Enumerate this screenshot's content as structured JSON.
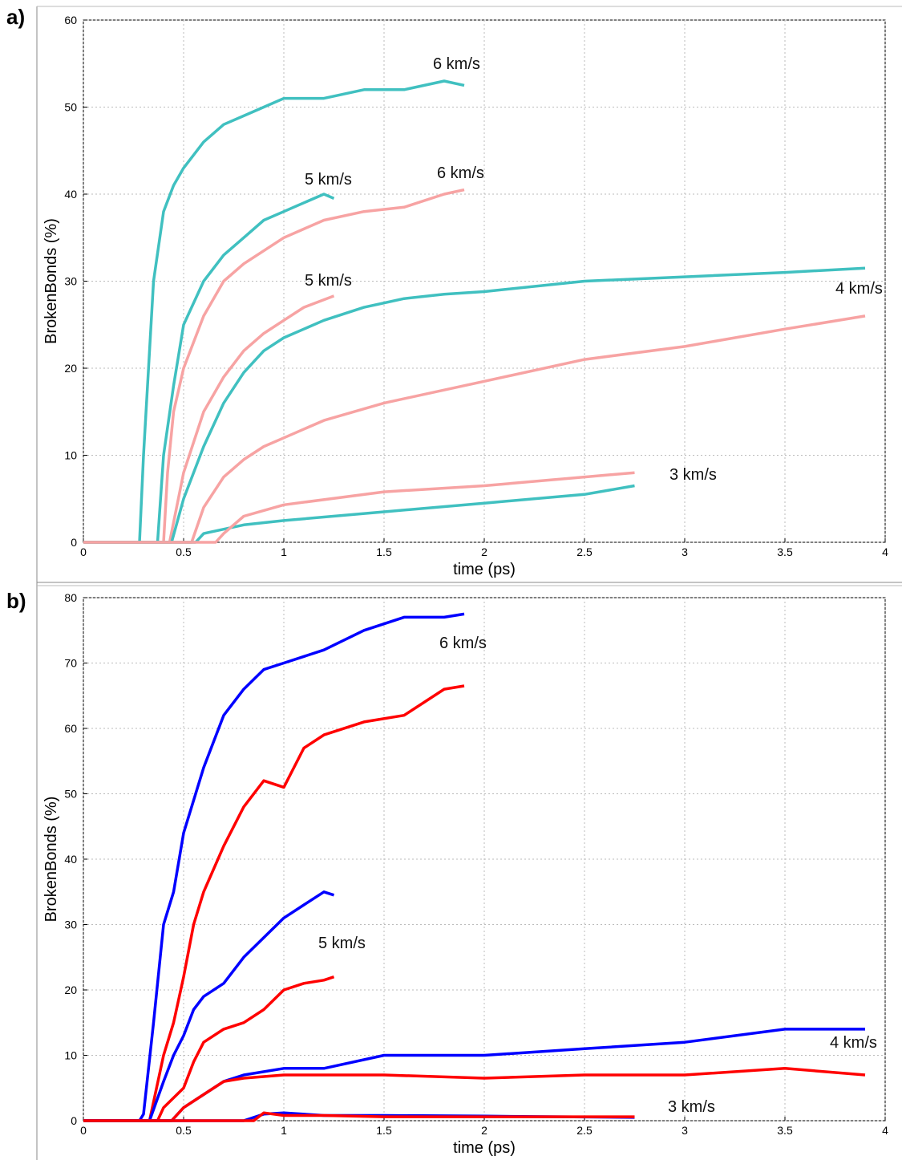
{
  "chart_data": [
    {
      "type": "line",
      "label": "a)",
      "xlabel": "time (ps)",
      "ylabel": "BrokenBonds (%)",
      "grid": true,
      "xlim": [
        0,
        4
      ],
      "ylim": [
        0,
        60
      ],
      "xticks": [
        0,
        0.5,
        1,
        1.5,
        2,
        2.5,
        3,
        3.5,
        4
      ],
      "yticks": [
        0,
        10,
        20,
        30,
        40,
        50,
        60
      ],
      "series": [
        {
          "color": "#40c0c0",
          "x": [
            0,
            0.28,
            0.3,
            0.35,
            0.4,
            0.45,
            0.5,
            0.6,
            0.7,
            0.8,
            0.9,
            1.0,
            1.2,
            1.4,
            1.6,
            1.8,
            1.9
          ],
          "values": [
            0,
            0,
            10,
            30,
            38,
            41,
            43,
            46,
            48,
            49,
            50,
            51,
            51,
            52,
            52,
            53,
            52.5
          ]
        },
        {
          "color": "#40c0c0",
          "x": [
            0,
            0.37,
            0.4,
            0.45,
            0.5,
            0.6,
            0.7,
            0.8,
            0.9,
            1.0,
            1.1,
            1.2,
            1.25
          ],
          "values": [
            0,
            0,
            10,
            18,
            25,
            30,
            33,
            35,
            37,
            38,
            39,
            40,
            39.5
          ]
        },
        {
          "color": "#f7a3a3",
          "x": [
            0,
            0.4,
            0.42,
            0.45,
            0.5,
            0.6,
            0.7,
            0.8,
            1.0,
            1.2,
            1.4,
            1.6,
            1.8,
            1.9
          ],
          "values": [
            0,
            0,
            8,
            15,
            20,
            26,
            30,
            32,
            35,
            37,
            38,
            38.5,
            40,
            40.5
          ]
        },
        {
          "color": "#f7a3a3",
          "x": [
            0,
            0.43,
            0.5,
            0.6,
            0.7,
            0.8,
            0.9,
            1.0,
            1.1,
            1.25
          ],
          "values": [
            0,
            0,
            8,
            15,
            19,
            22,
            24,
            25.5,
            27,
            28.3
          ]
        },
        {
          "color": "#40c0c0",
          "x": [
            0,
            0.44,
            0.5,
            0.6,
            0.7,
            0.8,
            0.9,
            1.0,
            1.2,
            1.4,
            1.6,
            1.8,
            2.0,
            2.5,
            3.0,
            3.5,
            3.9
          ],
          "values": [
            0,
            0,
            5,
            11,
            16,
            19.5,
            22,
            23.5,
            25.5,
            27,
            28,
            28.5,
            28.8,
            30,
            30.5,
            31,
            31.5
          ]
        },
        {
          "color": "#f7a3a3",
          "x": [
            0,
            0.54,
            0.6,
            0.7,
            0.8,
            0.9,
            1.0,
            1.2,
            1.5,
            2.0,
            2.5,
            3.0,
            3.5,
            3.9
          ],
          "values": [
            0,
            0,
            4,
            7.5,
            9.5,
            11,
            12,
            14,
            16,
            18.5,
            21,
            22.5,
            24.5,
            26
          ]
        },
        {
          "color": "#40c0c0",
          "x": [
            0,
            0.56,
            0.6,
            0.7,
            0.8,
            1.0,
            1.5,
            2.0,
            2.5,
            2.75
          ],
          "values": [
            0,
            0,
            1,
            1.5,
            2,
            2.5,
            3.5,
            4.5,
            5.5,
            6.5
          ]
        },
        {
          "color": "#f7a3a3",
          "x": [
            0,
            0.66,
            0.7,
            0.8,
            1.0,
            1.5,
            2.0,
            2.5,
            2.75
          ],
          "values": [
            0,
            0,
            1,
            3,
            4.3,
            5.8,
            6.5,
            7.5,
            8
          ]
        }
      ],
      "annotations": [
        "6 km/s",
        "5 km/s",
        "6 km/s",
        "5 km/s",
        "4 km/s",
        "3 km/s"
      ]
    },
    {
      "type": "line",
      "label": "b)",
      "xlabel": "time (ps)",
      "ylabel": "BrokenBonds (%)",
      "grid": true,
      "xlim": [
        0,
        4
      ],
      "ylim": [
        0,
        80
      ],
      "xticks": [
        0,
        0.5,
        1,
        1.5,
        2,
        2.5,
        3,
        3.5,
        4
      ],
      "yticks": [
        0,
        10,
        20,
        30,
        40,
        50,
        60,
        70,
        80
      ],
      "series": [
        {
          "color": "#0000ff",
          "x": [
            0,
            0.28,
            0.3,
            0.35,
            0.4,
            0.45,
            0.5,
            0.6,
            0.7,
            0.8,
            0.9,
            1.0,
            1.2,
            1.4,
            1.6,
            1.8,
            1.9
          ],
          "values": [
            0,
            0,
            1,
            15,
            30,
            35,
            44,
            54,
            62,
            66,
            69,
            70,
            72,
            75,
            77,
            77,
            77.5
          ]
        },
        {
          "color": "#ff0000",
          "x": [
            0,
            0.33,
            0.4,
            0.45,
            0.5,
            0.55,
            0.6,
            0.7,
            0.8,
            0.9,
            1.0,
            1.1,
            1.2,
            1.4,
            1.6,
            1.8,
            1.9
          ],
          "values": [
            0,
            0,
            10,
            15,
            22,
            30,
            35,
            42,
            48,
            52,
            51,
            57,
            59,
            61,
            62,
            66,
            66.5
          ]
        },
        {
          "color": "#0000ff",
          "x": [
            0,
            0.33,
            0.4,
            0.45,
            0.5,
            0.55,
            0.6,
            0.7,
            0.8,
            0.9,
            1.0,
            1.1,
            1.2,
            1.25
          ],
          "values": [
            0,
            0,
            6,
            10,
            13,
            17,
            19,
            21,
            25,
            28,
            31,
            33,
            35,
            34.5
          ]
        },
        {
          "color": "#ff0000",
          "x": [
            0,
            0.37,
            0.4,
            0.5,
            0.55,
            0.6,
            0.7,
            0.8,
            0.9,
            1.0,
            1.1,
            1.2,
            1.25
          ],
          "values": [
            0,
            0,
            2,
            5,
            9,
            12,
            14,
            15,
            17,
            20,
            21,
            21.5,
            22
          ]
        },
        {
          "color": "#0000ff",
          "x": [
            0,
            0.44,
            0.5,
            0.6,
            0.7,
            0.8,
            1.0,
            1.2,
            1.5,
            2.0,
            2.5,
            3.0,
            3.5,
            3.9
          ],
          "values": [
            0,
            0,
            2,
            4,
            6,
            7,
            8,
            8,
            10,
            10,
            11,
            12,
            14,
            14
          ]
        },
        {
          "color": "#ff0000",
          "x": [
            0,
            0.44,
            0.5,
            0.6,
            0.7,
            0.8,
            1.0,
            1.2,
            1.5,
            2.0,
            2.5,
            3.0,
            3.5,
            3.9
          ],
          "values": [
            0,
            0,
            2,
            4,
            6,
            6.5,
            7,
            7,
            7,
            6.5,
            7,
            7,
            8,
            7
          ]
        },
        {
          "color": "#0000ff",
          "x": [
            0,
            0.8,
            0.9,
            1.0,
            1.2,
            1.5,
            2.0,
            2.75
          ],
          "values": [
            0,
            0,
            1,
            1.2,
            0.8,
            0.8,
            0.7,
            0.5
          ]
        },
        {
          "color": "#ff0000",
          "x": [
            0,
            0.85,
            0.9,
            1.0,
            1.2,
            1.5,
            2.0,
            2.75
          ],
          "values": [
            0,
            0,
            1.2,
            0.8,
            0.8,
            0.6,
            0.6,
            0.6
          ]
        }
      ],
      "annotations": [
        "6 km/s",
        "5 km/s",
        "4 km/s",
        "3 km/s"
      ]
    }
  ]
}
